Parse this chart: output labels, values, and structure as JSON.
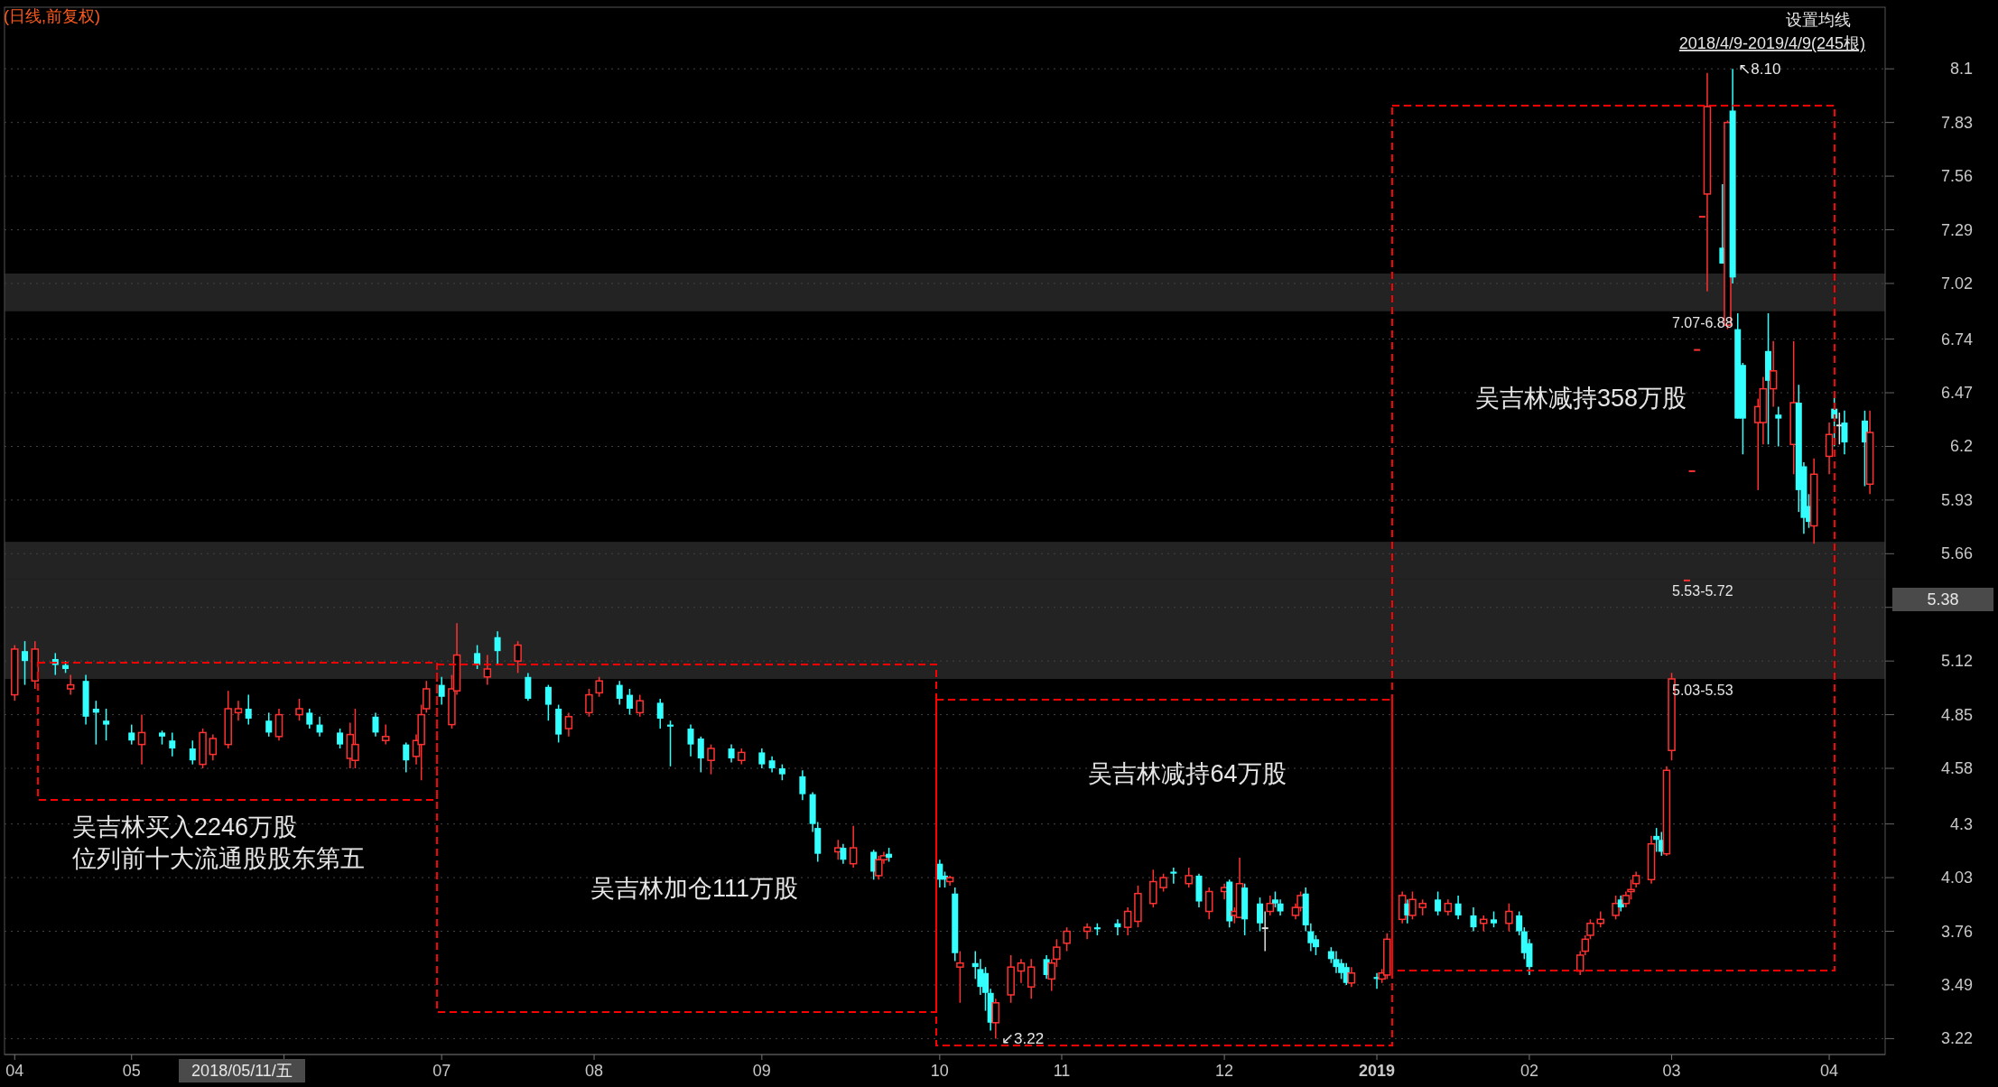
{
  "chart_data": {
    "type": "candlestick",
    "title": "(日线,前复权)",
    "annotations": [
      "设置均线",
      "2018/4/9-2019/4/9(245根)",
      "2018/05/11/五",
      "5.38",
      "吴吉林买入2246万股",
      "位列前十大流通股股东第五",
      "吴吉林加仓111万股",
      "吴吉林减持64万股",
      "吴吉林减持358万股",
      {
        "text": "↖8.10",
        "x": "2019-03-13",
        "y": 8.1
      },
      {
        "text": "↙3.22",
        "x": "2018-10-19",
        "y": 3.22
      }
    ],
    "x": [
      "2018-04-09",
      "2018-04-11",
      "2018-04-13",
      "2018-04-17",
      "2018-04-19",
      "2018-04-20",
      "2018-04-23",
      "2018-04-25",
      "2018-04-27",
      "2018-05-02",
      "2018-05-04",
      "2018-05-08",
      "2018-05-10",
      "2018-05-14",
      "2018-05-16",
      "2018-05-18",
      "2018-05-21",
      "2018-05-23",
      "2018-05-25",
      "2018-05-29",
      "2018-05-31",
      "2018-06-04",
      "2018-06-06",
      "2018-06-08",
      "2018-06-12",
      "2018-06-14",
      "2018-06-15",
      "2018-06-19",
      "2018-06-21",
      "2018-06-25",
      "2018-06-27",
      "2018-06-28",
      "2018-06-29",
      "2018-07-02",
      "2018-07-04",
      "2018-07-05",
      "2018-07-09",
      "2018-07-11",
      "2018-07-13",
      "2018-07-17",
      "2018-07-19",
      "2018-07-23",
      "2018-07-25",
      "2018-07-27",
      "2018-07-31",
      "2018-08-02",
      "2018-08-06",
      "2018-08-08",
      "2018-08-10",
      "2018-08-14",
      "2018-08-16",
      "2018-08-20",
      "2018-08-22",
      "2018-08-24",
      "2018-08-28",
      "2018-08-30",
      "2018-09-03",
      "2018-09-05",
      "2018-09-07",
      "2018-09-11",
      "2018-09-13",
      "2018-09-14",
      "2018-09-18",
      "2018-09-19",
      "2018-09-21",
      "2018-09-25",
      "2018-09-26",
      "2018-09-27",
      "2018-09-28",
      "2018-10-08",
      "2018-10-09",
      "2018-10-10",
      "2018-10-11",
      "2018-10-12",
      "2018-10-15",
      "2018-10-16",
      "2018-10-17",
      "2018-10-18",
      "2018-10-19",
      "2018-10-22",
      "2018-10-24",
      "2018-10-26",
      "2018-10-29",
      "2018-10-30",
      "2018-10-31",
      "2018-11-02",
      "2018-11-06",
      "2018-11-08",
      "2018-11-12",
      "2018-11-14",
      "2018-11-16",
      "2018-11-19",
      "2018-11-21",
      "2018-11-23",
      "2018-11-26",
      "2018-11-28",
      "2018-11-30",
      "2018-12-03",
      "2018-12-04",
      "2018-12-05",
      "2018-12-06",
      "2018-12-07",
      "2018-12-10",
      "2018-12-11",
      "2018-12-12",
      "2018-12-13",
      "2018-12-14",
      "2018-12-17",
      "2018-12-18",
      "2018-12-19",
      "2018-12-20",
      "2018-12-21",
      "2018-12-24",
      "2018-12-25",
      "2018-12-26",
      "2018-12-27",
      "2018-12-28",
      "2019-01-02",
      "2019-01-03",
      "2019-01-04",
      "2019-01-07",
      "2019-01-08",
      "2019-01-09",
      "2019-01-11",
      "2019-01-14",
      "2019-01-16",
      "2019-01-18",
      "2019-01-21",
      "2019-01-23",
      "2019-01-25",
      "2019-01-28",
      "2019-01-30",
      "2019-01-31",
      "2019-02-01",
      "2019-02-11",
      "2019-02-12",
      "2019-02-13",
      "2019-02-15",
      "2019-02-18",
      "2019-02-19",
      "2019-02-20",
      "2019-02-21",
      "2019-02-22",
      "2019-02-25",
      "2019-02-26",
      "2019-02-27",
      "2019-02-28",
      "2019-03-01",
      "2019-03-04",
      "2019-03-05",
      "2019-03-06",
      "2019-03-07",
      "2019-03-08",
      "2019-03-11",
      "2019-03-12",
      "2019-03-13",
      "2019-03-14",
      "2019-03-15",
      "2019-03-18",
      "2019-03-19",
      "2019-03-20",
      "2019-03-21",
      "2019-03-22",
      "2019-03-25",
      "2019-03-26",
      "2019-03-27",
      "2019-03-28",
      "2019-03-29",
      "2019-04-01",
      "2019-04-02",
      "2019-04-03",
      "2019-04-04",
      "2019-04-08",
      "2019-04-09"
    ],
    "ohlc": [
      [
        4.95,
        5.2,
        4.92,
        5.18
      ],
      [
        5.17,
        5.22,
        5.0,
        5.12
      ],
      [
        5.02,
        5.22,
        4.98,
        5.18
      ],
      [
        5.13,
        5.16,
        5.05,
        5.1
      ],
      [
        5.1,
        5.12,
        5.06,
        5.08
      ],
      [
        4.98,
        5.05,
        4.95,
        5.0
      ],
      [
        5.02,
        5.05,
        4.8,
        4.84
      ],
      [
        4.88,
        4.92,
        4.7,
        4.86
      ],
      [
        4.82,
        4.88,
        4.72,
        4.8
      ],
      [
        4.76,
        4.8,
        4.7,
        4.72
      ],
      [
        4.7,
        4.85,
        4.6,
        4.76
      ],
      [
        4.76,
        4.77,
        4.7,
        4.74
      ],
      [
        4.72,
        4.76,
        4.64,
        4.68
      ],
      [
        4.68,
        4.72,
        4.6,
        4.62
      ],
      [
        4.6,
        4.78,
        4.58,
        4.76
      ],
      [
        4.65,
        4.75,
        4.62,
        4.73
      ],
      [
        4.7,
        4.97,
        4.68,
        4.88
      ],
      [
        4.86,
        4.92,
        4.82,
        4.88
      ],
      [
        4.88,
        4.95,
        4.8,
        4.83
      ],
      [
        4.82,
        4.86,
        4.74,
        4.76
      ],
      [
        4.74,
        4.88,
        4.72,
        4.85
      ],
      [
        4.85,
        4.93,
        4.82,
        4.88
      ],
      [
        4.86,
        4.88,
        4.78,
        4.8
      ],
      [
        4.8,
        4.84,
        4.74,
        4.76
      ],
      [
        4.76,
        4.78,
        4.68,
        4.7
      ],
      [
        4.63,
        4.81,
        4.58,
        4.75
      ],
      [
        4.62,
        4.88,
        4.58,
        4.7
      ],
      [
        4.84,
        4.86,
        4.74,
        4.76
      ],
      [
        4.72,
        4.8,
        4.7,
        4.74
      ],
      [
        4.7,
        4.71,
        4.56,
        4.62
      ],
      [
        4.64,
        4.75,
        4.6,
        4.72
      ],
      [
        4.7,
        4.9,
        4.52,
        4.85
      ],
      [
        4.88,
        5.02,
        4.86,
        4.98
      ],
      [
        5.0,
        5.04,
        4.9,
        4.94
      ],
      [
        4.8,
        5.05,
        4.78,
        4.98
      ],
      [
        4.97,
        5.31,
        4.95,
        5.15
      ],
      [
        5.16,
        5.2,
        5.08,
        5.1
      ],
      [
        5.04,
        5.15,
        5.0,
        5.08
      ],
      [
        5.24,
        5.27,
        5.1,
        5.17
      ],
      [
        5.12,
        5.22,
        5.06,
        5.2
      ],
      [
        5.04,
        5.06,
        4.92,
        4.93
      ],
      [
        4.99,
        5.0,
        4.82,
        4.9
      ],
      [
        4.88,
        4.9,
        4.71,
        4.75
      ],
      [
        4.78,
        4.86,
        4.74,
        4.84
      ],
      [
        4.86,
        4.98,
        4.84,
        4.95
      ],
      [
        4.96,
        5.04,
        4.94,
        5.02
      ],
      [
        5.0,
        5.02,
        4.9,
        4.93
      ],
      [
        4.95,
        4.98,
        4.85,
        4.88
      ],
      [
        4.86,
        4.95,
        4.84,
        4.92
      ],
      [
        4.91,
        4.93,
        4.78,
        4.83
      ],
      [
        4.8,
        4.82,
        4.59,
        4.79
      ],
      [
        4.78,
        4.8,
        4.64,
        4.7
      ],
      [
        4.73,
        4.74,
        4.56,
        4.63
      ],
      [
        4.62,
        4.7,
        4.55,
        4.68
      ],
      [
        4.68,
        4.7,
        4.61,
        4.63
      ],
      [
        4.62,
        4.68,
        4.6,
        4.66
      ],
      [
        4.66,
        4.68,
        4.58,
        4.6
      ],
      [
        4.62,
        4.64,
        4.56,
        4.58
      ],
      [
        4.58,
        4.6,
        4.52,
        4.55
      ],
      [
        4.54,
        4.57,
        4.42,
        4.45
      ],
      [
        4.45,
        4.46,
        4.26,
        4.3
      ],
      [
        4.28,
        4.31,
        4.11,
        4.15
      ],
      [
        4.16,
        4.22,
        4.12,
        4.18
      ],
      [
        4.18,
        4.2,
        4.1,
        4.12
      ],
      [
        4.1,
        4.29,
        4.08,
        4.18
      ],
      [
        4.16,
        4.17,
        4.02,
        4.06
      ],
      [
        4.04,
        4.14,
        4.02,
        4.12
      ],
      [
        4.12,
        4.16,
        4.1,
        4.14
      ],
      [
        4.15,
        4.18,
        4.11,
        4.13
      ],
      [
        4.1,
        4.12,
        3.98,
        4.02
      ],
      [
        4.04,
        4.06,
        3.98,
        4.02
      ],
      [
        4.01,
        4.04,
        3.99,
        4.03
      ],
      [
        3.95,
        3.98,
        3.61,
        3.65
      ],
      [
        3.58,
        3.66,
        3.4,
        3.6
      ],
      [
        3.6,
        3.66,
        3.52,
        3.58
      ],
      [
        3.57,
        3.62,
        3.44,
        3.48
      ],
      [
        3.55,
        3.58,
        3.36,
        3.45
      ],
      [
        3.45,
        3.47,
        3.26,
        3.3
      ],
      [
        3.3,
        3.42,
        3.22,
        3.4
      ],
      [
        3.44,
        3.64,
        3.4,
        3.58
      ],
      [
        3.56,
        3.62,
        3.5,
        3.6
      ],
      [
        3.48,
        3.62,
        3.42,
        3.58
      ],
      [
        3.62,
        3.64,
        3.52,
        3.54
      ],
      [
        3.52,
        3.62,
        3.46,
        3.6
      ],
      [
        3.62,
        3.72,
        3.58,
        3.68
      ],
      [
        3.7,
        3.78,
        3.66,
        3.76
      ],
      [
        3.76,
        3.8,
        3.72,
        3.78
      ],
      [
        3.78,
        3.8,
        3.74,
        3.77
      ],
      [
        3.8,
        3.82,
        3.74,
        3.78
      ],
      [
        3.78,
        3.88,
        3.74,
        3.86
      ],
      [
        3.81,
        3.99,
        3.78,
        3.95
      ],
      [
        3.9,
        4.07,
        3.88,
        4.01
      ],
      [
        3.98,
        4.05,
        3.96,
        4.03
      ],
      [
        4.06,
        4.08,
        4.0,
        4.05
      ],
      [
        4.0,
        4.08,
        3.98,
        4.04
      ],
      [
        4.04,
        4.05,
        3.88,
        3.91
      ],
      [
        3.86,
        3.98,
        3.82,
        3.96
      ],
      [
        3.96,
        4.0,
        3.92,
        3.98
      ],
      [
        4.01,
        4.02,
        3.78,
        3.81
      ],
      [
        3.84,
        3.88,
        3.8,
        3.86
      ],
      [
        3.83,
        4.13,
        3.83,
        4.0
      ],
      [
        3.98,
        4.0,
        3.74,
        3.82
      ],
      [
        3.9,
        3.93,
        3.76,
        3.8
      ],
      [
        3.78,
        3.86,
        3.66,
        3.78
      ],
      [
        3.86,
        3.94,
        3.84,
        3.9
      ],
      [
        3.92,
        3.96,
        3.88,
        3.9
      ],
      [
        3.9,
        3.92,
        3.84,
        3.86
      ],
      [
        3.84,
        3.9,
        3.82,
        3.88
      ],
      [
        3.88,
        3.96,
        3.86,
        3.94
      ],
      [
        3.95,
        3.98,
        3.76,
        3.79
      ],
      [
        3.76,
        3.8,
        3.66,
        3.7
      ],
      [
        3.72,
        3.74,
        3.64,
        3.68
      ],
      [
        3.66,
        3.68,
        3.6,
        3.62
      ],
      [
        3.62,
        3.66,
        3.55,
        3.58
      ],
      [
        3.6,
        3.62,
        3.52,
        3.55
      ],
      [
        3.58,
        3.6,
        3.49,
        3.5
      ],
      [
        3.5,
        3.58,
        3.48,
        3.55
      ],
      [
        3.53,
        3.55,
        3.47,
        3.52
      ],
      [
        3.52,
        3.57,
        3.5,
        3.55
      ],
      [
        3.54,
        3.75,
        3.52,
        3.72
      ],
      [
        3.82,
        3.96,
        3.8,
        3.94
      ],
      [
        3.9,
        3.92,
        3.8,
        3.84
      ],
      [
        3.84,
        3.96,
        3.82,
        3.92
      ],
      [
        3.88,
        3.92,
        3.84,
        3.9
      ],
      [
        3.92,
        3.96,
        3.84,
        3.86
      ],
      [
        3.86,
        3.92,
        3.84,
        3.9
      ],
      [
        3.9,
        3.94,
        3.82,
        3.84
      ],
      [
        3.84,
        3.88,
        3.76,
        3.78
      ],
      [
        3.8,
        3.84,
        3.76,
        3.82
      ],
      [
        3.82,
        3.86,
        3.78,
        3.8
      ],
      [
        3.8,
        3.9,
        3.76,
        3.86
      ],
      [
        3.84,
        3.86,
        3.74,
        3.76
      ],
      [
        3.76,
        3.78,
        3.62,
        3.65
      ],
      [
        3.7,
        3.72,
        3.54,
        3.58
      ],
      [
        3.56,
        3.66,
        3.54,
        3.64
      ],
      [
        3.66,
        3.74,
        3.64,
        3.72
      ],
      [
        3.74,
        3.82,
        3.72,
        3.8
      ],
      [
        3.8,
        3.86,
        3.78,
        3.82
      ],
      [
        3.84,
        3.94,
        3.82,
        3.9
      ],
      [
        3.92,
        3.94,
        3.86,
        3.88
      ],
      [
        3.9,
        3.96,
        3.88,
        3.94
      ],
      [
        3.96,
        4.02,
        3.92,
        3.97
      ],
      [
        4.0,
        4.06,
        3.98,
        4.04
      ],
      [
        4.02,
        4.24,
        4.0,
        4.2
      ],
      [
        4.24,
        4.28,
        4.16,
        4.22
      ],
      [
        4.22,
        4.26,
        4.14,
        4.16
      ],
      [
        4.15,
        4.59,
        4.14,
        4.57
      ],
      [
        4.67,
        5.06,
        4.62,
        5.03
      ],
      [
        5.53,
        5.53,
        5.53,
        5.53
      ],
      [
        6.08,
        6.08,
        6.08,
        6.08
      ],
      [
        6.69,
        6.69,
        6.69,
        6.69
      ],
      [
        7.36,
        7.36,
        7.36,
        7.36
      ],
      [
        7.47,
        8.08,
        6.98,
        7.91
      ],
      [
        7.2,
        7.52,
        7.12,
        7.12
      ],
      [
        6.81,
        7.84,
        6.79,
        7.83
      ],
      [
        7.89,
        8.1,
        7.02,
        7.05
      ],
      [
        6.79,
        6.87,
        6.34,
        6.34
      ],
      [
        6.61,
        6.62,
        6.16,
        6.34
      ],
      [
        6.32,
        6.44,
        5.98,
        6.4
      ],
      [
        6.32,
        6.55,
        6.21,
        6.49
      ],
      [
        6.68,
        6.87,
        6.21,
        6.53
      ],
      [
        6.49,
        6.73,
        6.4,
        6.58
      ],
      [
        6.36,
        6.4,
        6.2,
        6.34
      ],
      [
        6.21,
        6.73,
        6.06,
        6.42
      ],
      [
        6.42,
        6.51,
        5.87,
        5.98
      ],
      [
        6.1,
        6.12,
        5.76,
        5.84
      ],
      [
        5.9,
        5.96,
        5.79,
        5.82
      ],
      [
        5.8,
        6.14,
        5.71,
        6.06
      ],
      [
        6.15,
        6.32,
        6.06,
        6.26
      ],
      [
        6.39,
        6.45,
        6.2,
        6.34
      ],
      [
        6.31,
        6.37,
        6.21,
        6.31
      ],
      [
        6.32,
        6.38,
        6.16,
        6.22
      ],
      [
        6.33,
        6.38,
        6.0,
        6.22
      ],
      [
        6.01,
        6.38,
        5.96,
        6.27
      ]
    ],
    "colors": [
      "#ff3232",
      "#33ffff",
      "#ff3232",
      "#33ffff",
      "#33ffff",
      "#ff3232",
      "#33ffff",
      "#33ffff",
      "#33ffff",
      "#33ffff",
      "#ff3232",
      "#33ffff",
      "#33ffff",
      "#33ffff",
      "#ff3232",
      "#ff3232",
      "#ff3232",
      "#ff3232",
      "#33ffff",
      "#33ffff",
      "#ff3232",
      "#ff3232",
      "#33ffff",
      "#33ffff",
      "#33ffff",
      "#ff3232",
      "#ff3232",
      "#33ffff",
      "#ff3232",
      "#33ffff",
      "#ff3232",
      "#ff3232",
      "#ff3232",
      "#33ffff",
      "#ff3232",
      "#ff3232",
      "#33ffff",
      "#ff3232",
      "#33ffff",
      "#ff3232",
      "#33ffff",
      "#33ffff",
      "#33ffff",
      "#ff3232",
      "#ff3232",
      "#ff3232",
      "#33ffff",
      "#33ffff",
      "#ff3232",
      "#33ffff",
      "#33ffff",
      "#33ffff",
      "#33ffff",
      "#ff3232",
      "#33ffff",
      "#ff3232",
      "#33ffff",
      "#33ffff",
      "#33ffff",
      "#33ffff",
      "#33ffff",
      "#33ffff",
      "#ff3232",
      "#33ffff",
      "#ff3232",
      "#33ffff",
      "#ff3232",
      "#ff3232",
      "#33ffff",
      "#33ffff",
      "#33ffff",
      "#ff3232",
      "#33ffff",
      "#ff3232",
      "#33ffff",
      "#33ffff",
      "#33ffff",
      "#33ffff",
      "#ff3232",
      "#ff3232",
      "#ff3232",
      "#ff3232",
      "#33ffff",
      "#ff3232",
      "#ff3232",
      "#ff3232",
      "#ff3232",
      "#33ffff",
      "#33ffff",
      "#ff3232",
      "#ff3232",
      "#ff3232",
      "#ff3232",
      "#33ffff",
      "#ff3232",
      "#33ffff",
      "#ff3232",
      "#ff3232",
      "#33ffff",
      "#ff3232",
      "#ff3232",
      "#33ffff",
      "#33ffff",
      "#e0e0e0",
      "#ff3232",
      "#33ffff",
      "#33ffff",
      "#ff3232",
      "#ff3232",
      "#33ffff",
      "#33ffff",
      "#33ffff",
      "#33ffff",
      "#33ffff",
      "#33ffff",
      "#33ffff",
      "#ff3232",
      "#33ffff",
      "#ff3232",
      "#ff3232",
      "#ff3232",
      "#33ffff",
      "#ff3232",
      "#ff3232",
      "#33ffff",
      "#ff3232",
      "#33ffff",
      "#33ffff",
      "#ff3232",
      "#33ffff",
      "#ff3232",
      "#33ffff",
      "#33ffff",
      "#33ffff",
      "#ff3232",
      "#ff3232",
      "#ff3232",
      "#ff3232",
      "#ff3232",
      "#33ffff",
      "#ff3232",
      "#ff3232",
      "#ff3232",
      "#ff3232",
      "#33ffff",
      "#33ffff",
      "#ff3232",
      "#ff3232",
      "#ff3232",
      "#ff3232",
      "#ff3232",
      "#ff3232",
      "#ff3232",
      "#33ffff",
      "#ff3232",
      "#33ffff",
      "#33ffff",
      "#33ffff",
      "#ff3232",
      "#ff3232",
      "#33ffff",
      "#ff3232",
      "#33ffff",
      "#ff3232",
      "#33ffff",
      "#33ffff",
      "#33ffff",
      "#ff3232",
      "#ff3232",
      "#33ffff",
      "#e0e0e0",
      "#33ffff",
      "#33ffff",
      "#ff3232"
    ],
    "xlim": [
      "2018-04-07",
      "2019-04-12"
    ],
    "xticks": [
      {
        "value": "2018-04-09",
        "label": "04"
      },
      {
        "value": "2018-05-02",
        "label": "05"
      },
      {
        "value": "2018-06-01",
        "label": null
      },
      {
        "value": "2018-07-02",
        "label": "07"
      },
      {
        "value": "2018-08-01",
        "label": "08"
      },
      {
        "value": "2018-09-03",
        "label": "09"
      },
      {
        "value": "2018-10-08",
        "label": "10"
      },
      {
        "value": "2018-11-01",
        "label": "11"
      },
      {
        "value": "2018-12-03",
        "label": "12"
      },
      {
        "value": "2019-01-02",
        "label": "2019"
      },
      {
        "value": "2019-02-01",
        "label": "02"
      },
      {
        "value": "2019-03-01",
        "label": "03"
      },
      {
        "value": "2019-04-01",
        "label": "04"
      }
    ],
    "ylim": [
      3.14,
      8.41
    ],
    "yticks": [
      3.22,
      3.49,
      3.76,
      4.03,
      4.3,
      4.58,
      4.85,
      5.12,
      {
        "value": 5.39,
        "label": null
      },
      5.66,
      5.93,
      6.2,
      6.47,
      6.74,
      7.02,
      7.29,
      7.56,
      7.83,
      8.1
    ],
    "grid": "y",
    "bands": [
      {
        "axis": "y",
        "from": 6.88,
        "to": 7.07,
        "label": "7.07-6.88",
        "color": "#404040"
      },
      {
        "axis": "y",
        "from": 5.53,
        "to": 5.72,
        "label": "5.53-5.72",
        "color": "#404040"
      },
      {
        "axis": "y",
        "from": 5.03,
        "to": 5.53,
        "label": "5.03-5.53",
        "color": "#404040"
      }
    ]
  }
}
